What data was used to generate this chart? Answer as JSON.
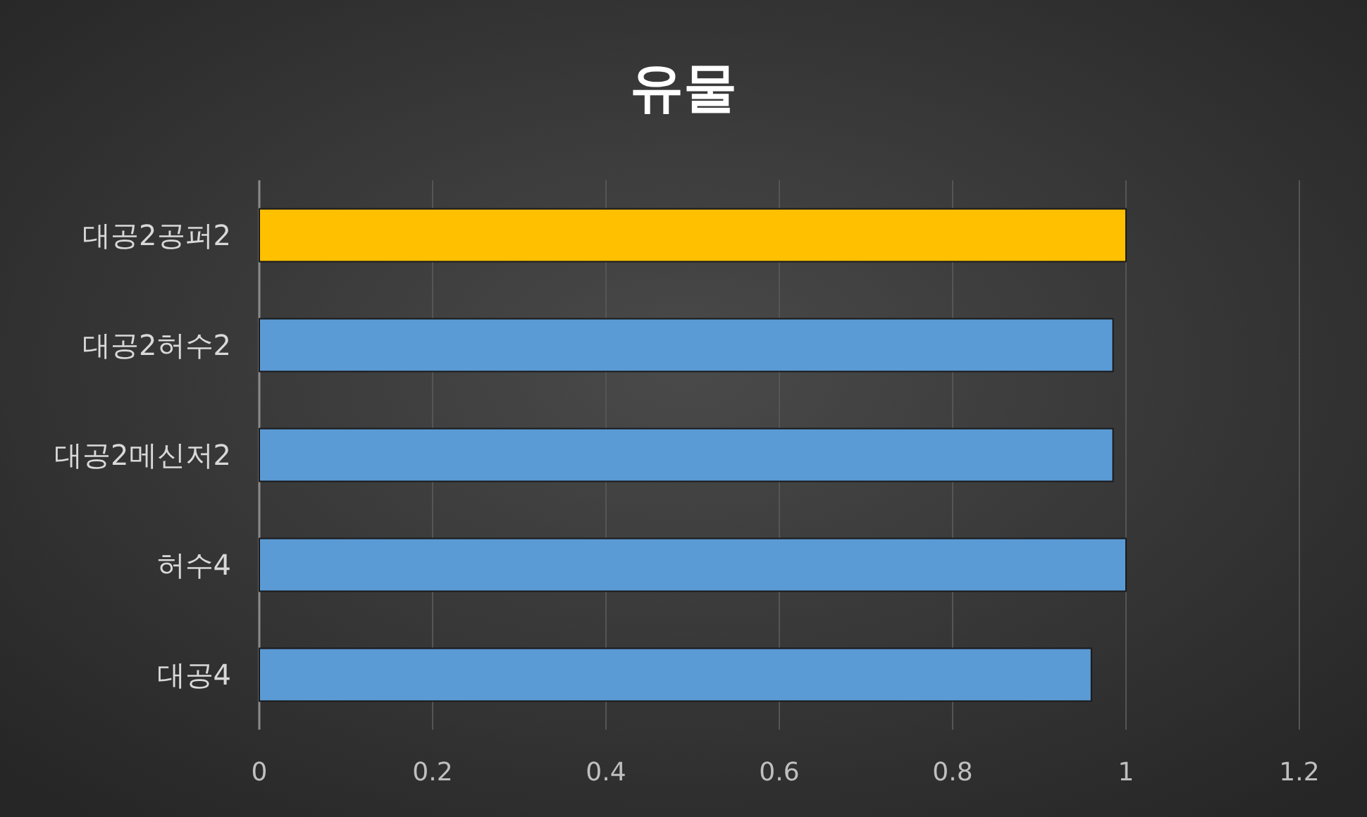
{
  "chart_data": {
    "type": "bar",
    "title": "유물",
    "orientation": "horizontal",
    "categories": [
      "대공2공퍼2",
      "대공2허수2",
      "대공2메신저2",
      "허수4",
      "대공4"
    ],
    "values": [
      1,
      0.985,
      0.985,
      1,
      0.96
    ],
    "colors": [
      "#ffc000",
      "#5b9bd5",
      "#5b9bd5",
      "#5b9bd5",
      "#5b9bd5"
    ],
    "xlim": [
      0,
      1.2
    ],
    "xticks": [
      0,
      0.2,
      0.4,
      0.6,
      0.8,
      1,
      1.2
    ],
    "grid": "x"
  }
}
